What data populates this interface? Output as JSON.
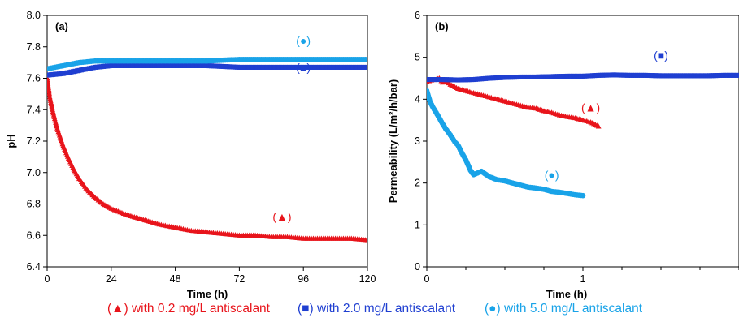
{
  "chart_data": [
    {
      "type": "scatter",
      "panel_label": "(a)",
      "xlabel": "Time (h)",
      "ylabel": "pH",
      "xlim": [
        0,
        120
      ],
      "ylim": [
        6.4,
        8.0
      ],
      "xticks": [
        "0",
        "24",
        "48",
        "72",
        "96",
        "120"
      ],
      "yticks": [
        "6.4",
        "6.6",
        "6.8",
        "7.0",
        "7.2",
        "7.4",
        "7.6",
        "7.8",
        "8.0"
      ],
      "series": [
        {
          "marker": "▲",
          "color": "#e8141b",
          "annotation": "(▲)",
          "x": [
            0,
            1,
            2,
            3,
            4,
            6,
            8,
            10,
            12,
            15,
            18,
            21,
            24,
            30,
            36,
            42,
            48,
            54,
            60,
            66,
            72,
            78,
            84,
            90,
            96,
            102,
            108,
            114,
            120
          ],
          "y": [
            7.6,
            7.48,
            7.4,
            7.33,
            7.27,
            7.17,
            7.09,
            7.02,
            6.96,
            6.89,
            6.84,
            6.8,
            6.77,
            6.73,
            6.7,
            6.67,
            6.65,
            6.63,
            6.62,
            6.61,
            6.6,
            6.6,
            6.59,
            6.59,
            6.58,
            6.58,
            6.58,
            6.58,
            6.57
          ]
        },
        {
          "marker": "■",
          "color": "#1f3fd1",
          "annotation": "(■)",
          "x": [
            0,
            6,
            12,
            18,
            24,
            36,
            48,
            60,
            72,
            84,
            96,
            108,
            120
          ],
          "y": [
            7.62,
            7.63,
            7.65,
            7.67,
            7.68,
            7.68,
            7.68,
            7.68,
            7.67,
            7.67,
            7.67,
            7.67,
            7.67
          ]
        },
        {
          "marker": "●",
          "color": "#19a3e8",
          "annotation": "(●)",
          "x": [
            0,
            6,
            12,
            18,
            24,
            36,
            48,
            60,
            72,
            84,
            96,
            108,
            120
          ],
          "y": [
            7.66,
            7.68,
            7.7,
            7.71,
            7.71,
            7.71,
            7.71,
            7.71,
            7.72,
            7.72,
            7.72,
            7.72,
            7.72
          ]
        }
      ]
    },
    {
      "type": "scatter",
      "panel_label": "(b)",
      "xlabel": "Time (h)",
      "ylabel": "Permeability  (L/m²/h/bar)",
      "xlim": [
        0,
        2
      ],
      "ylim": [
        0,
        6
      ],
      "xticks": [
        "0",
        "1"
      ],
      "yticks": [
        "0",
        "1",
        "2",
        "3",
        "4",
        "5",
        "6"
      ],
      "series": [
        {
          "marker": "▲",
          "color": "#e8141b",
          "annotation": "(▲)",
          "x": [
            0,
            0.03,
            0.06,
            0.08,
            0.1,
            0.12,
            0.15,
            0.2,
            0.25,
            0.3,
            0.35,
            0.4,
            0.45,
            0.5,
            0.55,
            0.6,
            0.65,
            0.7,
            0.75,
            0.8,
            0.85,
            0.9,
            0.95,
            1.0,
            1.05,
            1.1
          ],
          "y": [
            4.42,
            4.45,
            4.47,
            4.5,
            4.4,
            4.45,
            4.35,
            4.25,
            4.2,
            4.15,
            4.1,
            4.05,
            4.0,
            3.95,
            3.9,
            3.85,
            3.8,
            3.78,
            3.72,
            3.68,
            3.62,
            3.58,
            3.55,
            3.5,
            3.45,
            3.35
          ]
        },
        {
          "marker": "■",
          "color": "#1f3fd1",
          "annotation": "(■)",
          "x": [
            0,
            0.1,
            0.2,
            0.3,
            0.4,
            0.5,
            0.6,
            0.7,
            0.8,
            0.9,
            1.0,
            1.1,
            1.2,
            1.3,
            1.4,
            1.5,
            1.6,
            1.7,
            1.8,
            1.9,
            2.0
          ],
          "y": [
            4.47,
            4.47,
            4.46,
            4.47,
            4.5,
            4.52,
            4.53,
            4.53,
            4.54,
            4.55,
            4.55,
            4.57,
            4.58,
            4.57,
            4.57,
            4.56,
            4.56,
            4.56,
            4.56,
            4.57,
            4.57
          ]
        },
        {
          "marker": "●",
          "color": "#19a3e8",
          "annotation": "(●)",
          "x": [
            0,
            0.02,
            0.04,
            0.06,
            0.08,
            0.1,
            0.12,
            0.15,
            0.18,
            0.2,
            0.22,
            0.25,
            0.28,
            0.3,
            0.35,
            0.4,
            0.45,
            0.5,
            0.55,
            0.6,
            0.65,
            0.7,
            0.75,
            0.8,
            0.85,
            0.9,
            0.95,
            1.0
          ],
          "y": [
            4.2,
            3.95,
            3.8,
            3.68,
            3.55,
            3.42,
            3.3,
            3.15,
            2.98,
            2.9,
            2.75,
            2.55,
            2.3,
            2.2,
            2.28,
            2.15,
            2.08,
            2.05,
            2.0,
            1.95,
            1.9,
            1.88,
            1.85,
            1.8,
            1.78,
            1.75,
            1.72,
            1.7
          ]
        }
      ]
    }
  ],
  "legend": [
    {
      "text": "(▲) with 0.2 mg/L antiscalant",
      "color": "#e8141b"
    },
    {
      "text": "(■) with 2.0 mg/L antiscalant",
      "color": "#1f3fd1"
    },
    {
      "text": "(●) with 5.0 mg/L antiscalant",
      "color": "#19a3e8"
    }
  ]
}
